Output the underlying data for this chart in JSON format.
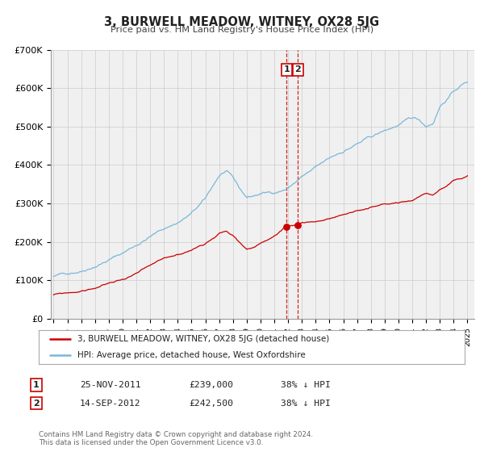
{
  "title": "3, BURWELL MEADOW, WITNEY, OX28 5JG",
  "subtitle": "Price paid vs. HM Land Registry's House Price Index (HPI)",
  "ylim": [
    0,
    700000
  ],
  "yticks": [
    0,
    100000,
    200000,
    300000,
    400000,
    500000,
    600000,
    700000
  ],
  "ytick_labels": [
    "£0",
    "£100K",
    "£200K",
    "£300K",
    "£400K",
    "£500K",
    "£600K",
    "£700K"
  ],
  "hpi_color": "#7ab8d9",
  "price_color": "#cc0000",
  "marker_color": "#cc0000",
  "dashed_line_color": "#cc0000",
  "grid_color": "#cccccc",
  "background_color": "#f0f0f0",
  "legend_label_price": "3, BURWELL MEADOW, WITNEY, OX28 5JG (detached house)",
  "legend_label_hpi": "HPI: Average price, detached house, West Oxfordshire",
  "transaction1_date": "25-NOV-2011",
  "transaction1_price": "£239,000",
  "transaction1_hpi": "38% ↓ HPI",
  "transaction1_year": 2011.9,
  "transaction1_val": 239000,
  "transaction2_date": "14-SEP-2012",
  "transaction2_price": "£242,500",
  "transaction2_hpi": "38% ↓ HPI",
  "transaction2_year": 2012.71,
  "transaction2_val": 242500,
  "footer": "Contains HM Land Registry data © Crown copyright and database right 2024.\nThis data is licensed under the Open Government Licence v3.0.",
  "xtick_years": [
    1995,
    1996,
    1997,
    1998,
    1999,
    2000,
    2001,
    2002,
    2003,
    2004,
    2005,
    2006,
    2007,
    2008,
    2009,
    2010,
    2011,
    2012,
    2013,
    2014,
    2015,
    2016,
    2017,
    2018,
    2019,
    2020,
    2021,
    2022,
    2023,
    2024,
    2025
  ]
}
